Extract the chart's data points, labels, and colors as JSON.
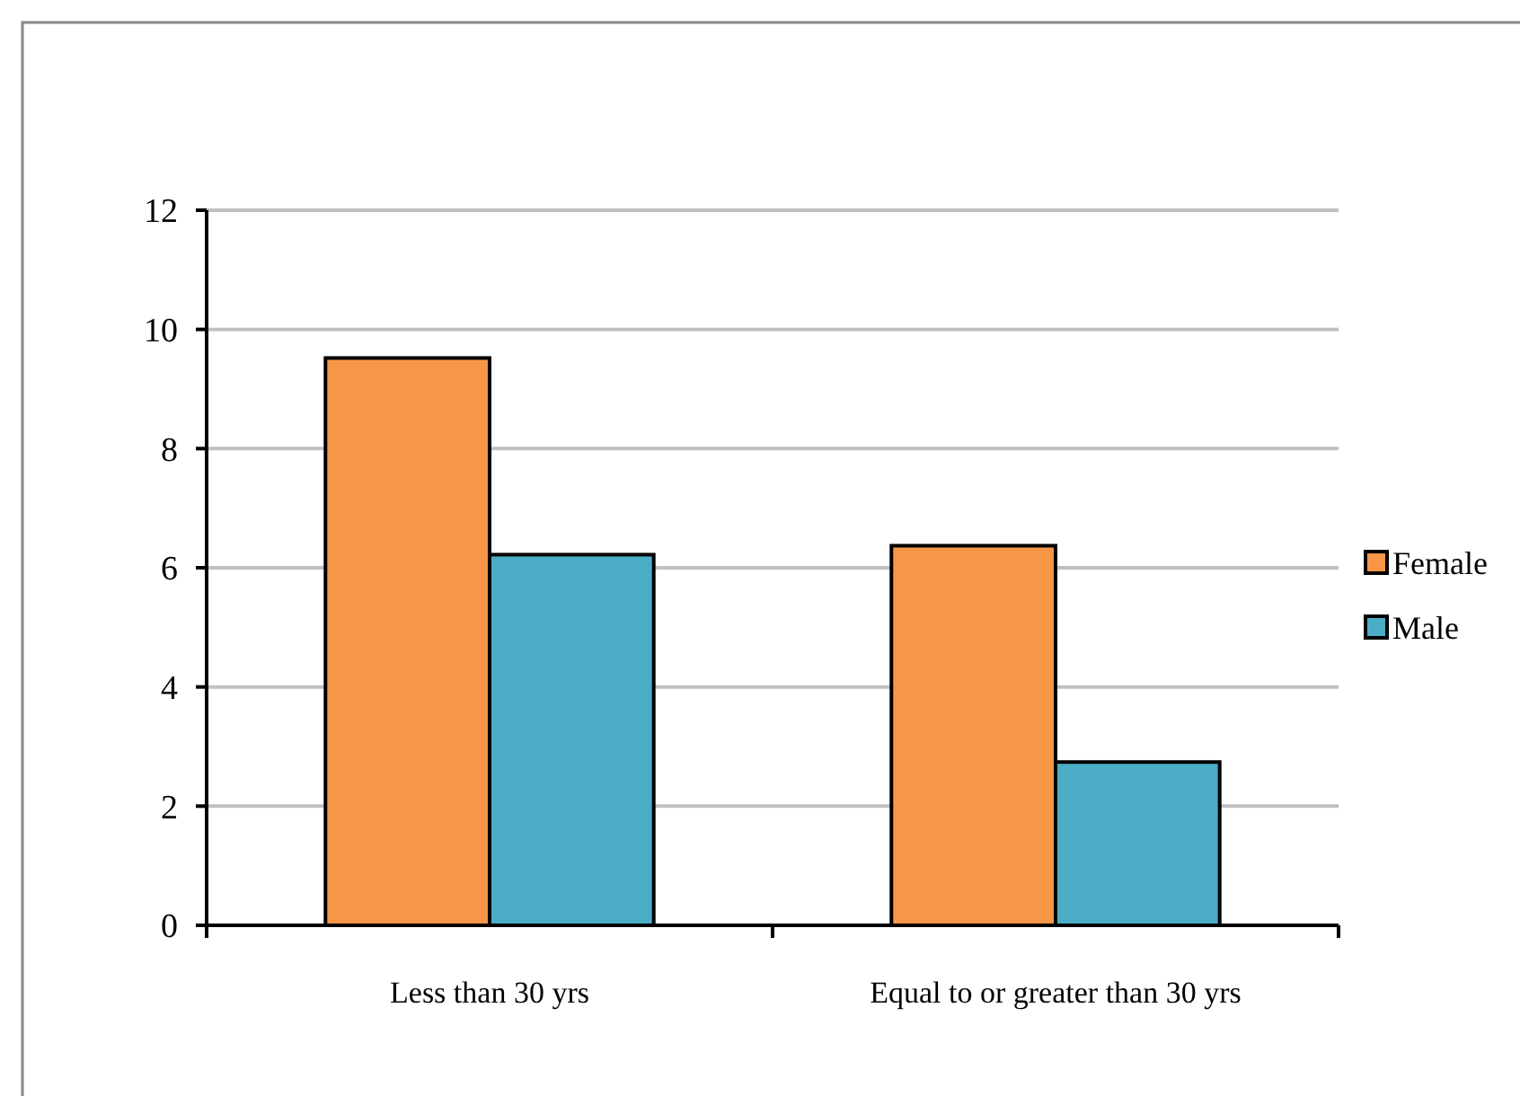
{
  "chart_data": {
    "type": "bar",
    "categories": [
      "Less than 30 yrs",
      "Equal to or greater than 30 yrs"
    ],
    "series": [
      {
        "name": "Female",
        "color": "#f79646",
        "values": [
          9.52,
          6.37
        ]
      },
      {
        "name": "Male",
        "color": "#4bacc6",
        "values": [
          6.22,
          2.74
        ]
      }
    ],
    "ylim": [
      0,
      12
    ],
    "yticks": [
      0,
      2,
      4,
      6,
      8,
      10,
      12
    ],
    "grid": "y",
    "legend": "right"
  }
}
